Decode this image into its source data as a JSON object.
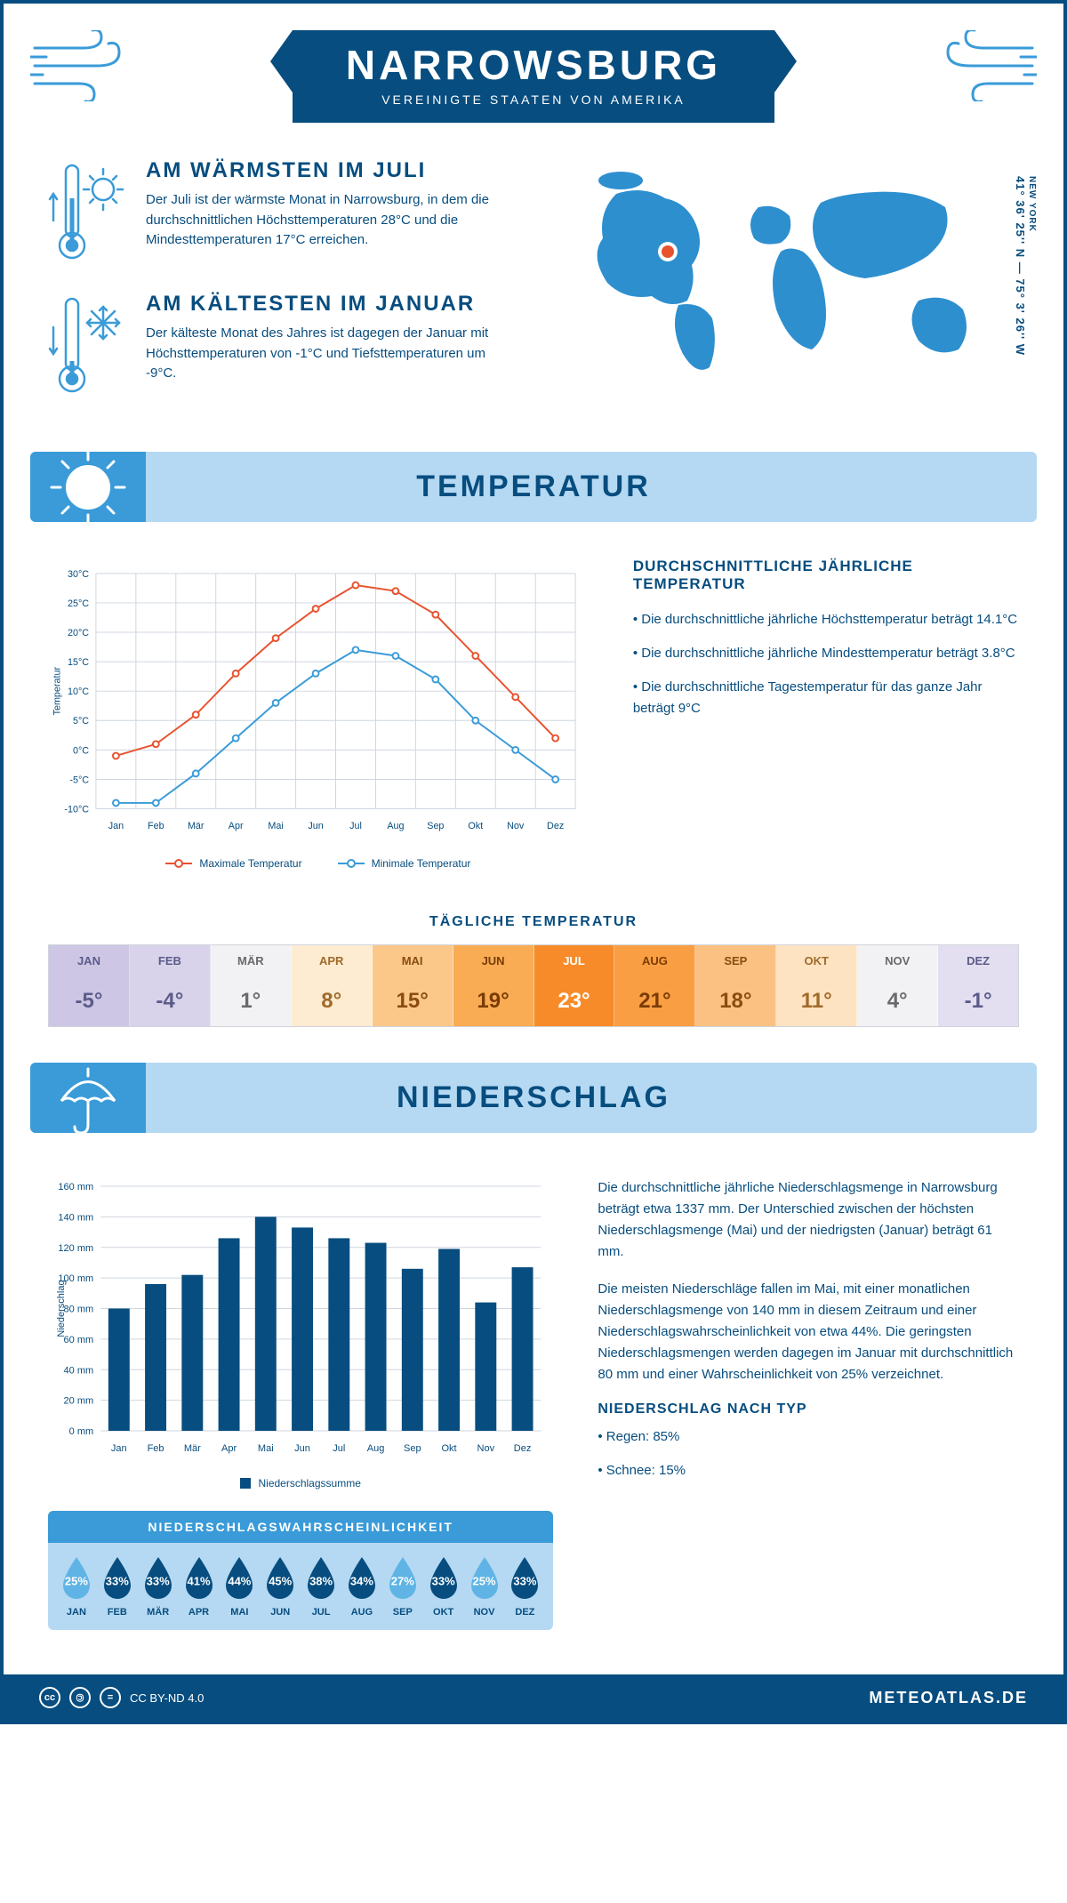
{
  "header": {
    "title": "NARROWSBURG",
    "subtitle": "VEREINIGTE STAATEN VON AMERIKA"
  },
  "coords": {
    "state": "NEW YORK",
    "text": "41° 36' 25'' N — 75° 3' 26'' W"
  },
  "facts": {
    "warm": {
      "title": "AM WÄRMSTEN IM JULI",
      "text": "Der Juli ist der wärmste Monat in Narrowsburg, in dem die durchschnittlichen Höchsttemperaturen 28°C und die Mindesttemperaturen 17°C erreichen."
    },
    "cold": {
      "title": "AM KÄLTESTEN IM JANUAR",
      "text": "Der kälteste Monat des Jahres ist dagegen der Januar mit Höchsttemperaturen von -1°C und Tiefsttemperaturen um -9°C."
    }
  },
  "sections": {
    "temp": "TEMPERATUR",
    "precip": "NIEDERSCHLAG"
  },
  "temp_chart": {
    "type": "line",
    "months": [
      "Jan",
      "Feb",
      "Mär",
      "Apr",
      "Mai",
      "Jun",
      "Jul",
      "Aug",
      "Sep",
      "Okt",
      "Nov",
      "Dez"
    ],
    "max_series": {
      "label": "Maximale Temperatur",
      "color": "#e8522f",
      "values": [
        -1,
        1,
        6,
        13,
        19,
        24,
        28,
        27,
        23,
        16,
        9,
        2
      ]
    },
    "min_series": {
      "label": "Minimale Temperatur",
      "color": "#3a9bd8",
      "values": [
        -9,
        -9,
        -4,
        2,
        8,
        13,
        17,
        16,
        12,
        5,
        0,
        -5
      ]
    },
    "ylabel": "Temperatur",
    "ymin": -10,
    "ymax": 30,
    "ystep": 5,
    "grid_color": "#cfd6df",
    "line_width": 2,
    "marker_radius": 3.5
  },
  "temp_side": {
    "title": "DURCHSCHNITTLICHE JÄHRLICHE TEMPERATUR",
    "bullets": [
      "• Die durchschnittliche jährliche Höchsttemperatur beträgt 14.1°C",
      "• Die durchschnittliche jährliche Mindesttemperatur beträgt 3.8°C",
      "• Die durchschnittliche Tagestemperatur für das ganze Jahr beträgt 9°C"
    ]
  },
  "daily": {
    "title": "TÄGLICHE TEMPERATUR",
    "months": [
      "JAN",
      "FEB",
      "MÄR",
      "APR",
      "MAI",
      "JUN",
      "JUL",
      "AUG",
      "SEP",
      "OKT",
      "NOV",
      "DEZ"
    ],
    "values": [
      "-5°",
      "-4°",
      "1°",
      "8°",
      "15°",
      "19°",
      "23°",
      "21°",
      "18°",
      "11°",
      "4°",
      "-1°"
    ],
    "bg_colors": [
      "#cdc6e4",
      "#d8d3ea",
      "#f2f2f5",
      "#fdebd2",
      "#fbc88a",
      "#f9ac54",
      "#f78b29",
      "#f99e42",
      "#fbc182",
      "#fde3c2",
      "#f2f2f5",
      "#e3dff0"
    ],
    "text_colors": [
      "#5b5b8a",
      "#5b5b8a",
      "#6a6a6a",
      "#a06a2a",
      "#8a4c0f",
      "#7a3c05",
      "#fff",
      "#7a3c05",
      "#8a4c0f",
      "#a06a2a",
      "#6a6a6a",
      "#5b5b8a"
    ]
  },
  "precip_chart": {
    "type": "bar",
    "months": [
      "Jan",
      "Feb",
      "Mär",
      "Apr",
      "Mai",
      "Jun",
      "Jul",
      "Aug",
      "Sep",
      "Okt",
      "Nov",
      "Dez"
    ],
    "values": [
      80,
      96,
      102,
      126,
      140,
      133,
      126,
      123,
      106,
      119,
      84,
      107
    ],
    "bar_color": "#074d7f",
    "ylabel": "Niederschlag",
    "legend": "Niederschlagssumme",
    "ymin": 0,
    "ymax": 160,
    "ystep": 20,
    "grid_color": "#cfd6df",
    "bar_width_ratio": 0.58
  },
  "precip_text": {
    "p1": "Die durchschnittliche jährliche Niederschlagsmenge in Narrowsburg beträgt etwa 1337 mm. Der Unterschied zwischen der höchsten Niederschlagsmenge (Mai) und der niedrigsten (Januar) beträgt 61 mm.",
    "p2": "Die meisten Niederschläge fallen im Mai, mit einer monatlichen Niederschlagsmenge von 140 mm in diesem Zeitraum und einer Niederschlagswahrscheinlichkeit von etwa 44%. Die geringsten Niederschlagsmengen werden dagegen im Januar mit durchschnittlich 80 mm und einer Wahrscheinlichkeit von 25% verzeichnet.",
    "type_title": "NIEDERSCHLAG NACH TYP",
    "type_bullets": [
      "• Regen: 85%",
      "• Schnee: 15%"
    ]
  },
  "prob": {
    "title": "NIEDERSCHLAGSWAHRSCHEINLICHKEIT",
    "months": [
      "JAN",
      "FEB",
      "MÄR",
      "APR",
      "MAI",
      "JUN",
      "JUL",
      "AUG",
      "SEP",
      "OKT",
      "NOV",
      "DEZ"
    ],
    "pct": [
      "25%",
      "33%",
      "33%",
      "41%",
      "44%",
      "45%",
      "38%",
      "34%",
      "27%",
      "33%",
      "25%",
      "33%"
    ],
    "drop_colors": [
      "#5fb4e5",
      "#074d7f",
      "#074d7f",
      "#074d7f",
      "#074d7f",
      "#074d7f",
      "#074d7f",
      "#074d7f",
      "#5fb4e5",
      "#074d7f",
      "#5fb4e5",
      "#074d7f"
    ]
  },
  "footer": {
    "license": "CC BY-ND 4.0",
    "site": "METEOATLAS.DE"
  },
  "colors": {
    "primary": "#074d7f",
    "accent": "#3a9bd8",
    "light": "#b5d9f3"
  }
}
